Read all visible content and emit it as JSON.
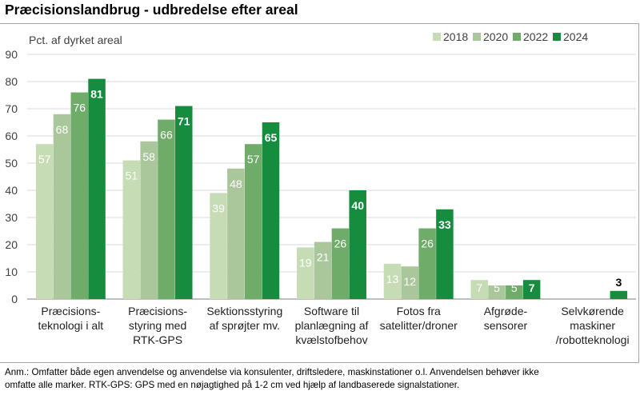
{
  "title": "Præcisionslandbrug - udbredelse efter areal",
  "note_lines": [
    "Anm.: Omfatter både egen anvendelse og anvendelse via konsulenter, driftsledere, maskinstationer o.l. Anvendelsen behøver ikke",
    "omfatte alle marker. RTK-GPS: GPS med en nøjagtighed på 1-2 cm ved hjælp af landbaserede signalstationer."
  ],
  "colors": {
    "2018": "#c5dcb4",
    "2020": "#a9c79a",
    "2022": "#6fac6a",
    "2024": "#168c3e",
    "grid": "#d9d9d9",
    "axis": "#7f7f7f"
  },
  "chart_data": {
    "type": "bar",
    "title": "Præcisionslandbrug - udbredelse efter areal",
    "ylabel": "Pct. af dyrket areal",
    "ylim": [
      0,
      90
    ],
    "yticks": [
      0,
      10,
      20,
      30,
      40,
      50,
      60,
      70,
      80,
      90
    ],
    "grid": true,
    "legend_position": "top-right",
    "categories": [
      [
        "Præcisions-",
        "teknologi i alt"
      ],
      [
        "Præcisions-",
        "styring med",
        "RTK-GPS"
      ],
      [
        "Sektionsstyring",
        "af sprøjter mv."
      ],
      [
        "Software til",
        "planlægning af",
        "kvælstofbehov"
      ],
      [
        "Fotos fra",
        "satelitter/droner"
      ],
      [
        "Afgrøde-",
        "sensorer"
      ],
      [
        "Selvkørende",
        "maskiner",
        "/robotteknologi"
      ]
    ],
    "series": [
      {
        "name": "2018",
        "values": [
          57,
          51,
          39,
          19,
          13,
          7,
          null
        ],
        "labels": [
          "57",
          "51",
          "39",
          "19",
          "13",
          "7",
          ".."
        ]
      },
      {
        "name": "2020",
        "values": [
          68,
          58,
          48,
          21,
          12,
          5,
          null
        ],
        "labels": [
          "68",
          "58",
          "48",
          "21",
          "12",
          "5",
          ".."
        ]
      },
      {
        "name": "2022",
        "values": [
          76,
          66,
          57,
          26,
          26,
          5,
          null
        ],
        "labels": [
          "76",
          "66",
          "57",
          "26",
          "26",
          "5",
          ""
        ]
      },
      {
        "name": "2024",
        "values": [
          81,
          71,
          65,
          40,
          33,
          7,
          3
        ],
        "labels": [
          "81",
          "71",
          "65",
          "40",
          "33",
          "7",
          "3"
        ]
      }
    ]
  }
}
